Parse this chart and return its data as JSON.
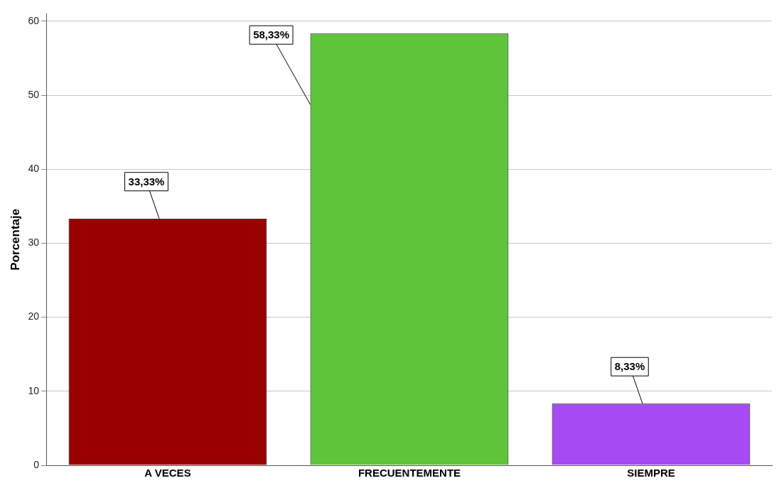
{
  "chart_data": {
    "type": "bar",
    "ylabel": "Porcentaje",
    "categories": [
      "A VECES",
      "FRECUENTEMENTE",
      "SIEMPRE"
    ],
    "values": [
      33.33,
      58.33,
      8.33
    ],
    "colors": [
      "#990000",
      "#5fc43a",
      "#a64bf4"
    ],
    "value_labels": [
      "33,33%",
      "58,33%",
      "8,33%"
    ],
    "ylim": [
      0,
      61
    ],
    "yticks": [
      0,
      10,
      20,
      30,
      40,
      50,
      60
    ],
    "grid": "y",
    "legend": false
  }
}
